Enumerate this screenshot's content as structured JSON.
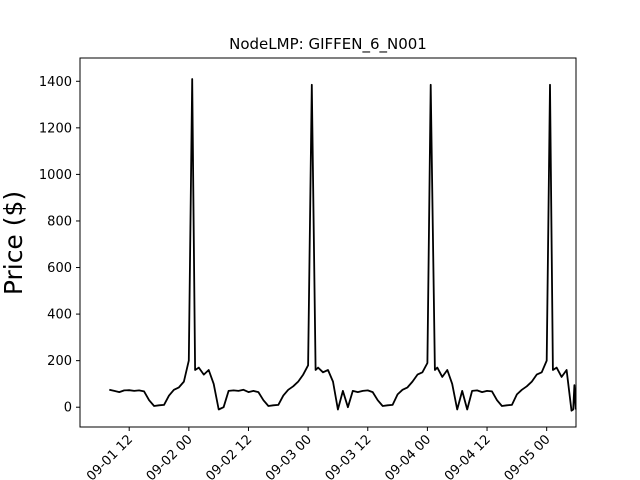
{
  "chart_data": {
    "type": "line",
    "title": "NodeLMP: GIFFEN_6_N001",
    "xlabel": "",
    "ylabel": "Price ($)",
    "ylim": [
      -85,
      1500
    ],
    "xlim": [
      "2021-09-01 02:06",
      "2021-09-05 05:54"
    ],
    "grid": false,
    "line_color": "#000000",
    "yticks": [
      0,
      200,
      400,
      600,
      800,
      1000,
      1200,
      1400
    ],
    "xtick_values": [
      "2021-09-01 12:00",
      "2021-09-02 00:00",
      "2021-09-02 12:00",
      "2021-09-03 00:00",
      "2021-09-03 12:00",
      "2021-09-04 00:00",
      "2021-09-04 12:00",
      "2021-09-05 00:00"
    ],
    "xtick_labels": [
      "09-01 12",
      "09-02 00",
      "09-02 12",
      "09-03 00",
      "09-03 12",
      "09-04 00",
      "09-04 12",
      "09-05 00"
    ],
    "series": [
      {
        "name": "",
        "points": [
          [
            "2021-09-01 08:00",
            75
          ],
          [
            "2021-09-01 09:00",
            70
          ],
          [
            "2021-09-01 10:00",
            65
          ],
          [
            "2021-09-01 11:00",
            72
          ],
          [
            "2021-09-01 12:00",
            73
          ],
          [
            "2021-09-01 13:00",
            70
          ],
          [
            "2021-09-01 14:00",
            72
          ],
          [
            "2021-09-01 15:00",
            68
          ],
          [
            "2021-09-01 16:00",
            30
          ],
          [
            "2021-09-01 17:00",
            5
          ],
          [
            "2021-09-01 18:00",
            8
          ],
          [
            "2021-09-01 19:00",
            10
          ],
          [
            "2021-09-01 20:00",
            50
          ],
          [
            "2021-09-01 21:00",
            75
          ],
          [
            "2021-09-01 22:00",
            85
          ],
          [
            "2021-09-01 23:00",
            110
          ],
          [
            "2021-09-02 00:00",
            200
          ],
          [
            "2021-09-02 00:40",
            1410
          ],
          [
            "2021-09-02 01:15",
            160
          ],
          [
            "2021-09-02 02:00",
            170
          ],
          [
            "2021-09-02 03:00",
            140
          ],
          [
            "2021-09-02 04:00",
            160
          ],
          [
            "2021-09-02 05:00",
            100
          ],
          [
            "2021-09-02 06:00",
            -10
          ],
          [
            "2021-09-02 07:00",
            0
          ],
          [
            "2021-09-02 08:00",
            70
          ],
          [
            "2021-09-02 09:00",
            72
          ],
          [
            "2021-09-02 10:00",
            70
          ],
          [
            "2021-09-02 11:00",
            75
          ],
          [
            "2021-09-02 12:00",
            65
          ],
          [
            "2021-09-02 13:00",
            70
          ],
          [
            "2021-09-02 14:00",
            65
          ],
          [
            "2021-09-02 15:00",
            30
          ],
          [
            "2021-09-02 16:00",
            5
          ],
          [
            "2021-09-02 17:00",
            8
          ],
          [
            "2021-09-02 18:00",
            10
          ],
          [
            "2021-09-02 19:00",
            50
          ],
          [
            "2021-09-02 20:00",
            75
          ],
          [
            "2021-09-02 21:00",
            90
          ],
          [
            "2021-09-02 22:00",
            110
          ],
          [
            "2021-09-02 23:00",
            140
          ],
          [
            "2021-09-03 00:00",
            180
          ],
          [
            "2021-09-03 00:45",
            1385
          ],
          [
            "2021-09-03 01:30",
            160
          ],
          [
            "2021-09-03 02:00",
            170
          ],
          [
            "2021-09-03 03:00",
            150
          ],
          [
            "2021-09-03 04:00",
            160
          ],
          [
            "2021-09-03 05:00",
            110
          ],
          [
            "2021-09-03 06:00",
            -10
          ],
          [
            "2021-09-03 07:00",
            70
          ],
          [
            "2021-09-03 08:00",
            0
          ],
          [
            "2021-09-03 09:00",
            70
          ],
          [
            "2021-09-03 10:00",
            65
          ],
          [
            "2021-09-03 11:00",
            70
          ],
          [
            "2021-09-03 12:00",
            72
          ],
          [
            "2021-09-03 13:00",
            65
          ],
          [
            "2021-09-03 14:00",
            30
          ],
          [
            "2021-09-03 15:00",
            5
          ],
          [
            "2021-09-03 16:00",
            8
          ],
          [
            "2021-09-03 17:00",
            10
          ],
          [
            "2021-09-03 18:00",
            55
          ],
          [
            "2021-09-03 19:00",
            75
          ],
          [
            "2021-09-03 20:00",
            85
          ],
          [
            "2021-09-03 21:00",
            110
          ],
          [
            "2021-09-03 22:00",
            140
          ],
          [
            "2021-09-03 23:00",
            150
          ],
          [
            "2021-09-04 00:00",
            190
          ],
          [
            "2021-09-04 00:40",
            1385
          ],
          [
            "2021-09-04 01:30",
            160
          ],
          [
            "2021-09-04 02:00",
            170
          ],
          [
            "2021-09-04 03:00",
            130
          ],
          [
            "2021-09-04 04:00",
            160
          ],
          [
            "2021-09-04 05:00",
            100
          ],
          [
            "2021-09-04 06:00",
            -10
          ],
          [
            "2021-09-04 07:00",
            70
          ],
          [
            "2021-09-04 08:00",
            -10
          ],
          [
            "2021-09-04 09:00",
            70
          ],
          [
            "2021-09-04 10:00",
            72
          ],
          [
            "2021-09-04 11:00",
            65
          ],
          [
            "2021-09-04 12:00",
            70
          ],
          [
            "2021-09-04 13:00",
            68
          ],
          [
            "2021-09-04 14:00",
            30
          ],
          [
            "2021-09-04 15:00",
            5
          ],
          [
            "2021-09-04 16:00",
            8
          ],
          [
            "2021-09-04 17:00",
            10
          ],
          [
            "2021-09-04 18:00",
            55
          ],
          [
            "2021-09-04 19:00",
            75
          ],
          [
            "2021-09-04 20:00",
            90
          ],
          [
            "2021-09-04 21:00",
            110
          ],
          [
            "2021-09-04 22:00",
            140
          ],
          [
            "2021-09-04 23:00",
            150
          ],
          [
            "2021-09-05 00:00",
            200
          ],
          [
            "2021-09-05 00:40",
            1385
          ],
          [
            "2021-09-05 01:15",
            160
          ],
          [
            "2021-09-05 02:00",
            170
          ],
          [
            "2021-09-05 03:00",
            130
          ],
          [
            "2021-09-05 04:00",
            160
          ],
          [
            "2021-09-05 05:00",
            -15
          ],
          [
            "2021-09-05 05:20",
            -10
          ],
          [
            "2021-09-05 05:35",
            95
          ],
          [
            "2021-09-05 05:50",
            -10
          ]
        ]
      }
    ]
  }
}
